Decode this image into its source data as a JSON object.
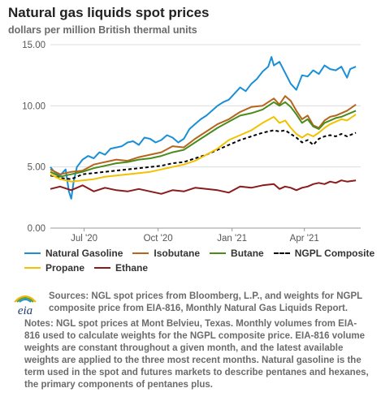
{
  "header": {
    "title": "Natural gas liquids spot prices",
    "subtitle": "dollars per million British thermal units"
  },
  "chart_data": {
    "type": "line",
    "title": "Natural gas liquids spot prices",
    "ylabel": "dollars per million British thermal units",
    "xlabel": "",
    "ylim": [
      0,
      15
    ],
    "yticks": [
      "0.00",
      "5.00",
      "10.00",
      "15.00"
    ],
    "xticks": [
      {
        "date": "2020-07-01",
        "label": "Jul '20"
      },
      {
        "date": "2020-10-01",
        "label": "Oct '20"
      },
      {
        "date": "2021-01-01",
        "label": "Jan '21"
      },
      {
        "date": "2021-04-01",
        "label": "Apr '21"
      }
    ],
    "xlim": [
      "2020-05-20",
      "2021-06-10"
    ],
    "grid": "horizontal",
    "legend_position": "bottom",
    "series": [
      {
        "name": "Natural Gasoline",
        "color": "#1a8fd6",
        "dash": false,
        "points": [
          [
            "2020-05-20",
            5.0
          ],
          [
            "2020-05-25",
            4.6
          ],
          [
            "2020-06-01",
            4.3
          ],
          [
            "2020-06-08",
            4.8
          ],
          [
            "2020-06-12",
            3.0
          ],
          [
            "2020-06-15",
            2.4
          ],
          [
            "2020-06-18",
            3.8
          ],
          [
            "2020-06-22",
            5.0
          ],
          [
            "2020-06-29",
            5.6
          ],
          [
            "2020-07-06",
            5.9
          ],
          [
            "2020-07-13",
            5.7
          ],
          [
            "2020-07-20",
            6.2
          ],
          [
            "2020-07-27",
            6.0
          ],
          [
            "2020-08-03",
            6.5
          ],
          [
            "2020-08-10",
            6.6
          ],
          [
            "2020-08-17",
            6.7
          ],
          [
            "2020-08-24",
            7.0
          ],
          [
            "2020-08-31",
            7.1
          ],
          [
            "2020-09-07",
            6.8
          ],
          [
            "2020-09-14",
            7.4
          ],
          [
            "2020-09-21",
            7.3
          ],
          [
            "2020-09-28",
            7.0
          ],
          [
            "2020-10-05",
            7.2
          ],
          [
            "2020-10-12",
            7.6
          ],
          [
            "2020-10-19",
            7.4
          ],
          [
            "2020-10-26",
            7.0
          ],
          [
            "2020-11-02",
            7.3
          ],
          [
            "2020-11-09",
            8.1
          ],
          [
            "2020-11-16",
            8.5
          ],
          [
            "2020-11-23",
            8.9
          ],
          [
            "2020-11-30",
            9.2
          ],
          [
            "2020-12-07",
            9.6
          ],
          [
            "2020-12-14",
            10.0
          ],
          [
            "2020-12-21",
            10.3
          ],
          [
            "2020-12-28",
            10.5
          ],
          [
            "2021-01-04",
            11.0
          ],
          [
            "2021-01-11",
            11.5
          ],
          [
            "2021-01-18",
            11.2
          ],
          [
            "2021-01-25",
            11.8
          ],
          [
            "2021-02-01",
            12.2
          ],
          [
            "2021-02-08",
            12.8
          ],
          [
            "2021-02-15",
            13.2
          ],
          [
            "2021-02-19",
            14.0
          ],
          [
            "2021-02-22",
            13.3
          ],
          [
            "2021-03-01",
            13.6
          ],
          [
            "2021-03-08",
            12.7
          ],
          [
            "2021-03-15",
            11.8
          ],
          [
            "2021-03-22",
            11.3
          ],
          [
            "2021-03-29",
            12.5
          ],
          [
            "2021-04-05",
            12.4
          ],
          [
            "2021-04-12",
            12.9
          ],
          [
            "2021-04-19",
            12.6
          ],
          [
            "2021-04-26",
            13.3
          ],
          [
            "2021-05-03",
            13.0
          ],
          [
            "2021-05-10",
            12.9
          ],
          [
            "2021-05-17",
            13.2
          ],
          [
            "2021-05-24",
            12.3
          ],
          [
            "2021-05-28",
            13.0
          ],
          [
            "2021-06-04",
            13.2
          ]
        ]
      },
      {
        "name": "Isobutane",
        "color": "#b5651d",
        "dash": false,
        "points": [
          [
            "2020-05-20",
            4.8
          ],
          [
            "2020-06-01",
            4.4
          ],
          [
            "2020-06-15",
            4.6
          ],
          [
            "2020-06-29",
            4.7
          ],
          [
            "2020-07-13",
            5.2
          ],
          [
            "2020-07-27",
            5.4
          ],
          [
            "2020-08-10",
            5.6
          ],
          [
            "2020-08-24",
            5.5
          ],
          [
            "2020-09-07",
            5.8
          ],
          [
            "2020-09-21",
            6.0
          ],
          [
            "2020-10-05",
            6.2
          ],
          [
            "2020-10-19",
            6.7
          ],
          [
            "2020-11-02",
            6.6
          ],
          [
            "2020-11-16",
            7.3
          ],
          [
            "2020-11-30",
            7.9
          ],
          [
            "2020-12-14",
            8.5
          ],
          [
            "2020-12-28",
            8.9
          ],
          [
            "2021-01-11",
            9.5
          ],
          [
            "2021-01-25",
            9.9
          ],
          [
            "2021-02-08",
            10.0
          ],
          [
            "2021-02-22",
            10.6
          ],
          [
            "2021-03-01",
            10.1
          ],
          [
            "2021-03-08",
            10.8
          ],
          [
            "2021-03-15",
            10.4
          ],
          [
            "2021-03-22",
            9.6
          ],
          [
            "2021-03-29",
            8.9
          ],
          [
            "2021-04-05",
            9.2
          ],
          [
            "2021-04-12",
            8.4
          ],
          [
            "2021-04-19",
            8.2
          ],
          [
            "2021-04-26",
            8.8
          ],
          [
            "2021-05-03",
            9.1
          ],
          [
            "2021-05-10",
            9.2
          ],
          [
            "2021-05-17",
            9.4
          ],
          [
            "2021-05-24",
            9.6
          ],
          [
            "2021-06-04",
            10.1
          ]
        ]
      },
      {
        "name": "Butane",
        "color": "#4a8c1c",
        "dash": false,
        "points": [
          [
            "2020-05-20",
            4.6
          ],
          [
            "2020-06-01",
            4.2
          ],
          [
            "2020-06-15",
            4.4
          ],
          [
            "2020-06-29",
            4.6
          ],
          [
            "2020-07-13",
            4.9
          ],
          [
            "2020-07-27",
            5.1
          ],
          [
            "2020-08-10",
            5.3
          ],
          [
            "2020-08-24",
            5.4
          ],
          [
            "2020-09-07",
            5.6
          ],
          [
            "2020-09-21",
            5.7
          ],
          [
            "2020-10-05",
            5.9
          ],
          [
            "2020-10-19",
            6.2
          ],
          [
            "2020-11-02",
            6.4
          ],
          [
            "2020-11-16",
            7.0
          ],
          [
            "2020-11-30",
            7.6
          ],
          [
            "2020-12-14",
            8.2
          ],
          [
            "2020-12-28",
            8.7
          ],
          [
            "2021-01-11",
            9.2
          ],
          [
            "2021-01-25",
            9.4
          ],
          [
            "2021-02-08",
            9.7
          ],
          [
            "2021-02-22",
            10.3
          ],
          [
            "2021-03-01",
            10.0
          ],
          [
            "2021-03-08",
            10.3
          ],
          [
            "2021-03-15",
            9.9
          ],
          [
            "2021-03-22",
            9.3
          ],
          [
            "2021-03-29",
            8.6
          ],
          [
            "2021-04-05",
            8.9
          ],
          [
            "2021-04-12",
            8.3
          ],
          [
            "2021-04-19",
            8.1
          ],
          [
            "2021-04-26",
            8.6
          ],
          [
            "2021-05-03",
            8.8
          ],
          [
            "2021-05-10",
            9.0
          ],
          [
            "2021-05-17",
            9.1
          ],
          [
            "2021-05-24",
            9.3
          ],
          [
            "2021-06-04",
            9.6
          ]
        ]
      },
      {
        "name": "NGPL Composite",
        "color": "#000000",
        "dash": true,
        "points": [
          [
            "2020-05-20",
            4.3
          ],
          [
            "2020-06-01",
            4.1
          ],
          [
            "2020-06-15",
            4.0
          ],
          [
            "2020-06-29",
            4.4
          ],
          [
            "2020-07-13",
            4.5
          ],
          [
            "2020-07-27",
            4.6
          ],
          [
            "2020-08-10",
            4.7
          ],
          [
            "2020-08-24",
            4.8
          ],
          [
            "2020-09-07",
            4.9
          ],
          [
            "2020-09-21",
            5.0
          ],
          [
            "2020-10-05",
            5.1
          ],
          [
            "2020-10-19",
            5.3
          ],
          [
            "2020-11-02",
            5.4
          ],
          [
            "2020-11-16",
            5.7
          ],
          [
            "2020-11-30",
            6.0
          ],
          [
            "2020-12-14",
            6.4
          ],
          [
            "2020-12-28",
            6.8
          ],
          [
            "2021-01-11",
            7.2
          ],
          [
            "2021-01-25",
            7.5
          ],
          [
            "2021-02-08",
            7.8
          ],
          [
            "2021-02-22",
            8.0
          ],
          [
            "2021-03-01",
            7.9
          ],
          [
            "2021-03-08",
            8.0
          ],
          [
            "2021-03-15",
            7.7
          ],
          [
            "2021-03-22",
            7.4
          ],
          [
            "2021-03-29",
            7.0
          ],
          [
            "2021-04-05",
            7.2
          ],
          [
            "2021-04-12",
            6.8
          ],
          [
            "2021-04-19",
            7.3
          ],
          [
            "2021-04-26",
            7.5
          ],
          [
            "2021-05-03",
            7.6
          ],
          [
            "2021-05-10",
            7.5
          ],
          [
            "2021-05-17",
            7.7
          ],
          [
            "2021-05-24",
            7.5
          ],
          [
            "2021-06-04",
            7.8
          ]
        ]
      },
      {
        "name": "Propane",
        "color": "#f2c200",
        "dash": false,
        "points": [
          [
            "2020-05-20",
            4.4
          ],
          [
            "2020-06-01",
            4.0
          ],
          [
            "2020-06-15",
            3.8
          ],
          [
            "2020-06-29",
            3.9
          ],
          [
            "2020-07-13",
            4.0
          ],
          [
            "2020-07-27",
            4.2
          ],
          [
            "2020-08-10",
            4.3
          ],
          [
            "2020-08-24",
            4.4
          ],
          [
            "2020-09-07",
            4.5
          ],
          [
            "2020-09-21",
            4.6
          ],
          [
            "2020-10-05",
            4.8
          ],
          [
            "2020-10-19",
            5.0
          ],
          [
            "2020-11-02",
            5.2
          ],
          [
            "2020-11-16",
            5.5
          ],
          [
            "2020-11-30",
            6.0
          ],
          [
            "2020-12-14",
            6.5
          ],
          [
            "2020-12-28",
            7.2
          ],
          [
            "2021-01-11",
            7.6
          ],
          [
            "2021-01-25",
            8.0
          ],
          [
            "2021-02-08",
            8.6
          ],
          [
            "2021-02-22",
            9.1
          ],
          [
            "2021-03-01",
            8.6
          ],
          [
            "2021-03-08",
            8.8
          ],
          [
            "2021-03-15",
            8.2
          ],
          [
            "2021-03-22",
            7.7
          ],
          [
            "2021-03-29",
            7.4
          ],
          [
            "2021-04-05",
            7.7
          ],
          [
            "2021-04-12",
            7.5
          ],
          [
            "2021-04-19",
            7.8
          ],
          [
            "2021-04-26",
            8.2
          ],
          [
            "2021-05-03",
            8.5
          ],
          [
            "2021-05-10",
            8.7
          ],
          [
            "2021-05-17",
            8.9
          ],
          [
            "2021-05-24",
            8.8
          ],
          [
            "2021-06-04",
            9.3
          ]
        ]
      },
      {
        "name": "Ethane",
        "color": "#8b1a1a",
        "dash": false,
        "points": [
          [
            "2020-05-20",
            3.2
          ],
          [
            "2020-06-01",
            3.4
          ],
          [
            "2020-06-15",
            3.1
          ],
          [
            "2020-06-29",
            3.5
          ],
          [
            "2020-07-13",
            3.0
          ],
          [
            "2020-07-27",
            3.3
          ],
          [
            "2020-08-10",
            3.1
          ],
          [
            "2020-08-24",
            3.0
          ],
          [
            "2020-09-07",
            3.2
          ],
          [
            "2020-09-21",
            3.0
          ],
          [
            "2020-10-05",
            2.8
          ],
          [
            "2020-10-19",
            3.1
          ],
          [
            "2020-11-02",
            3.0
          ],
          [
            "2020-11-16",
            3.3
          ],
          [
            "2020-11-30",
            3.2
          ],
          [
            "2020-12-14",
            3.1
          ],
          [
            "2020-12-28",
            2.9
          ],
          [
            "2021-01-11",
            3.4
          ],
          [
            "2021-01-25",
            3.3
          ],
          [
            "2021-02-08",
            3.5
          ],
          [
            "2021-02-22",
            3.6
          ],
          [
            "2021-03-01",
            3.2
          ],
          [
            "2021-03-08",
            3.4
          ],
          [
            "2021-03-15",
            3.3
          ],
          [
            "2021-03-22",
            3.1
          ],
          [
            "2021-03-29",
            3.3
          ],
          [
            "2021-04-05",
            3.4
          ],
          [
            "2021-04-12",
            3.6
          ],
          [
            "2021-04-19",
            3.7
          ],
          [
            "2021-04-26",
            3.6
          ],
          [
            "2021-05-03",
            3.8
          ],
          [
            "2021-05-10",
            3.7
          ],
          [
            "2021-05-17",
            3.9
          ],
          [
            "2021-05-24",
            3.8
          ],
          [
            "2021-06-04",
            3.9
          ]
        ]
      }
    ]
  },
  "legend": {
    "row1": [
      {
        "label": "Natural Gasoline",
        "color": "#1a8fd6",
        "dashed": false
      },
      {
        "label": "Isobutane",
        "color": "#b5651d",
        "dashed": false
      },
      {
        "label": "Butane",
        "color": "#4a8c1c",
        "dashed": false
      },
      {
        "label": "NGPL Composite",
        "color": "#000000",
        "dashed": true
      }
    ],
    "row2": [
      {
        "label": "Propane",
        "color": "#f2c200",
        "dashed": false
      },
      {
        "label": "Ethane",
        "color": "#8b1a1a",
        "dashed": false
      }
    ]
  },
  "footer": {
    "logo_text": "eia",
    "sources": "Sources: NGL spot prices from Bloomberg, L.P., and weights for NGPL composite price from EIA-816, Monthly Natural Gas Liquids Report.",
    "notes": "Notes: NGL spot prices at Mont Belvieu, Texas. Monthly volumes from EIA-816 used to calculate weights for the NGPL composite price. EIA-816 volume weights are constant throughout a given month, and the latest available weights are applied to the three most recent months. Natural gasoline is the term used in the spot and futures markets to describe pentanes and hexanes, the primary components of pentanes plus."
  }
}
